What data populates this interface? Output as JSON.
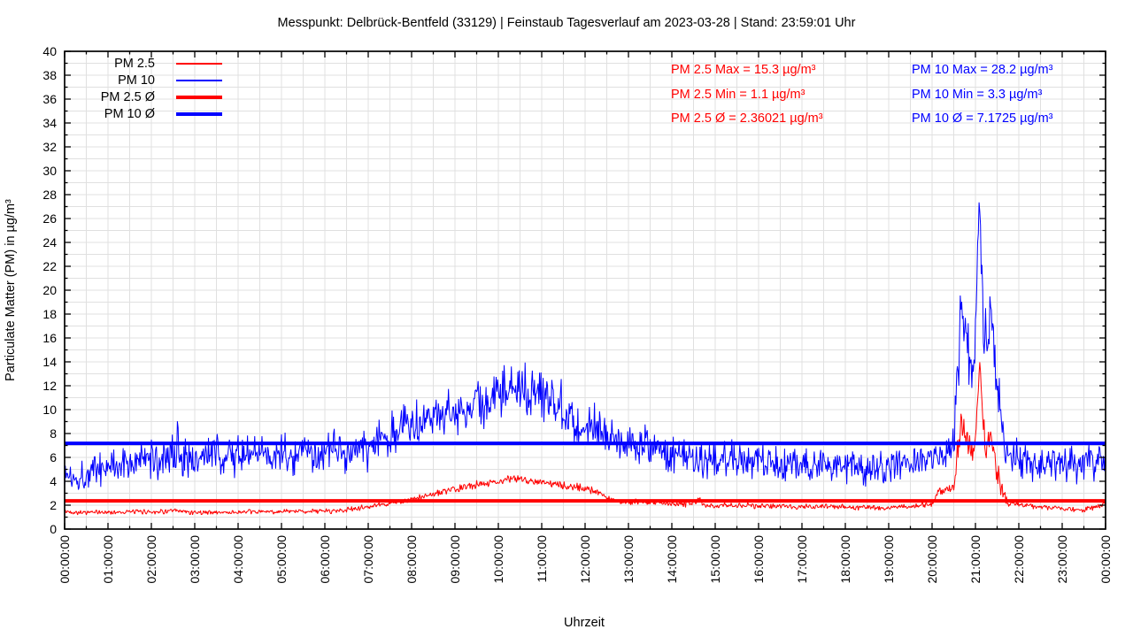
{
  "window": {
    "title": "Messpunkt: Delbrück-Bentfeld (33129) | Feinstaub Tagesverlauf am 2023-03-28 | Stand: 23:59:01 Uhr"
  },
  "legend": {
    "items": [
      {
        "label": "PM 2.5",
        "color": "#ff0000",
        "thick": false
      },
      {
        "label": "PM 10",
        "color": "#0000ff",
        "thick": false
      },
      {
        "label": "PM 2.5 Ø",
        "color": "#ff0000",
        "thick": true
      },
      {
        "label": "PM 10 Ø",
        "color": "#0000ff",
        "thick": true
      }
    ]
  },
  "stats": {
    "pm25": {
      "color": "#ff0000",
      "max_label": "PM 2.5 Max = 15.3 µg/m³",
      "min_label": "PM 2.5 Min = 1.1 µg/m³",
      "avg_label": "PM 2.5 Ø = 2.36021 µg/m³"
    },
    "pm10": {
      "color": "#0000ff",
      "max_label": "PM 10 Max = 28.2 µg/m³",
      "min_label": "PM 10 Min = 3.3 µg/m³",
      "avg_label": "PM 10 Ø = 7.1725 µg/m³"
    }
  },
  "chart_data": {
    "type": "line",
    "title": "Messpunkt: Delbrück-Bentfeld (33129) | Feinstaub Tagesverlauf am 2023-03-28 | Stand: 23:59:01 Uhr",
    "xlabel": "Uhrzeit",
    "ylabel": "Particulate Matter (PM) in µg/m³",
    "x_range_hours": [
      0,
      24
    ],
    "ylim": [
      0,
      40
    ],
    "y_major_step": 2,
    "y_minor_step": 1,
    "x_major_step_hours": 1,
    "x_minor_step_hours": 0.5,
    "grid": "major_and_minor",
    "grid_color": "#e0e0e0",
    "x_tick_labels": [
      "00:00:00",
      "01:00:00",
      "02:00:00",
      "03:00:00",
      "04:00:00",
      "05:00:00",
      "06:00:00",
      "07:00:00",
      "08:00:00",
      "09:00:00",
      "10:00:00",
      "11:00:00",
      "12:00:00",
      "13:00:00",
      "14:00:00",
      "15:00:00",
      "16:00:00",
      "17:00:00",
      "18:00:00",
      "19:00:00",
      "20:00:00",
      "21:00:00",
      "22:00:00",
      "23:00:00",
      "00:00:00"
    ],
    "y_tick_labels": [
      "0",
      "2",
      "4",
      "6",
      "8",
      "10",
      "12",
      "14",
      "16",
      "18",
      "20",
      "22",
      "24",
      "26",
      "28",
      "30",
      "32",
      "34",
      "36",
      "38",
      "40"
    ],
    "sample_interval_minutes": 1,
    "series": [
      {
        "name": "PM 2.5",
        "color": "#ff0000",
        "width": 1,
        "stats": {
          "max": 15.3,
          "min": 1.1,
          "avg": 2.36021
        },
        "noise_seed": 42,
        "clamp": [
          1.1,
          15.3
        ],
        "envelope_points_hour_mean_amp": [
          [
            0,
            1.45,
            0.18
          ],
          [
            0.5,
            1.4,
            0.15
          ],
          [
            1,
            1.4,
            0.15
          ],
          [
            1.5,
            1.45,
            0.15
          ],
          [
            2,
            1.45,
            0.15
          ],
          [
            2.5,
            1.5,
            0.18
          ],
          [
            3,
            1.4,
            0.15
          ],
          [
            3.5,
            1.4,
            0.15
          ],
          [
            4,
            1.4,
            0.15
          ],
          [
            4.5,
            1.45,
            0.15
          ],
          [
            5,
            1.45,
            0.15
          ],
          [
            5.5,
            1.5,
            0.15
          ],
          [
            6,
            1.5,
            0.18
          ],
          [
            6.5,
            1.6,
            0.18
          ],
          [
            7,
            1.85,
            0.18
          ],
          [
            7.5,
            2.15,
            0.15
          ],
          [
            8,
            2.45,
            0.18
          ],
          [
            8.5,
            2.95,
            0.2
          ],
          [
            9,
            3.3,
            0.22
          ],
          [
            9.5,
            3.75,
            0.25
          ],
          [
            10,
            4.0,
            0.25
          ],
          [
            10.4,
            4.25,
            0.25
          ],
          [
            10.8,
            4.05,
            0.22
          ],
          [
            11.2,
            3.8,
            0.22
          ],
          [
            11.6,
            3.55,
            0.25
          ],
          [
            12,
            3.45,
            0.28
          ],
          [
            12.3,
            3.1,
            0.25
          ],
          [
            12.6,
            2.4,
            0.18
          ],
          [
            13,
            2.25,
            0.18
          ],
          [
            13.5,
            2.3,
            0.2
          ],
          [
            14,
            2.05,
            0.18
          ],
          [
            14.5,
            2.2,
            0.25
          ],
          [
            14.6,
            2.6,
            0.3
          ],
          [
            14.7,
            2.1,
            0.2
          ],
          [
            15,
            1.95,
            0.18
          ],
          [
            15.5,
            2.0,
            0.18
          ],
          [
            16,
            1.95,
            0.18
          ],
          [
            16.5,
            1.9,
            0.18
          ],
          [
            17,
            1.9,
            0.18
          ],
          [
            17.5,
            1.85,
            0.18
          ],
          [
            18,
            1.85,
            0.18
          ],
          [
            18.5,
            1.8,
            0.18
          ],
          [
            19,
            1.8,
            0.18
          ],
          [
            19.5,
            1.9,
            0.18
          ],
          [
            20,
            2.1,
            0.2
          ],
          [
            20.15,
            3.1,
            0.3
          ],
          [
            20.35,
            3.3,
            0.3
          ],
          [
            20.5,
            3.4,
            0.5
          ],
          [
            20.6,
            7.0,
            1.5
          ],
          [
            20.68,
            9.0,
            0.7
          ],
          [
            20.8,
            7.8,
            0.9
          ],
          [
            20.92,
            6.2,
            0.8
          ],
          [
            21.02,
            8.5,
            1.2
          ],
          [
            21.1,
            14.3,
            1.0
          ],
          [
            21.18,
            8.0,
            1.2
          ],
          [
            21.28,
            7.0,
            0.9
          ],
          [
            21.37,
            7.8,
            0.7
          ],
          [
            21.5,
            5.0,
            0.9
          ],
          [
            21.6,
            3.2,
            0.5
          ],
          [
            21.75,
            2.2,
            0.25
          ],
          [
            22,
            2.0,
            0.18
          ],
          [
            22.3,
            1.95,
            0.18
          ],
          [
            22.7,
            1.8,
            0.18
          ],
          [
            23,
            1.7,
            0.18
          ],
          [
            23.3,
            1.6,
            0.18
          ],
          [
            23.6,
            1.65,
            0.18
          ],
          [
            23.85,
            1.9,
            0.2
          ],
          [
            24,
            2.2,
            0.2
          ]
        ]
      },
      {
        "name": "PM 10",
        "color": "#0000ff",
        "width": 1,
        "stats": {
          "max": 28.2,
          "min": 3.3,
          "avg": 7.1725
        },
        "noise_seed": 1337,
        "clamp": [
          3.3,
          28.2
        ],
        "envelope_points_hour_mean_amp": [
          [
            0,
            4.6,
            1.0
          ],
          [
            0.3,
            4.3,
            0.9
          ],
          [
            0.7,
            5.0,
            1.1
          ],
          [
            1,
            5.3,
            1.1
          ],
          [
            1.5,
            5.6,
            1.2
          ],
          [
            2,
            5.8,
            1.2
          ],
          [
            2.4,
            6.0,
            1.7
          ],
          [
            2.55,
            7.0,
            2.2
          ],
          [
            2.7,
            6.0,
            1.5
          ],
          [
            3,
            6.0,
            1.3
          ],
          [
            3.5,
            6.2,
            1.4
          ],
          [
            4,
            6.2,
            1.3
          ],
          [
            4.5,
            6.3,
            1.2
          ],
          [
            5,
            6.3,
            1.2
          ],
          [
            5.5,
            6.2,
            1.2
          ],
          [
            6,
            6.3,
            1.3
          ],
          [
            6.5,
            6.5,
            1.3
          ],
          [
            7,
            6.8,
            1.4
          ],
          [
            7.5,
            7.8,
            1.5
          ],
          [
            8,
            9.2,
            1.4
          ],
          [
            8.5,
            9.6,
            1.3
          ],
          [
            9,
            9.8,
            1.4
          ],
          [
            9.5,
            10.3,
            1.5
          ],
          [
            10,
            11.0,
            1.5
          ],
          [
            10.3,
            11.8,
            1.6
          ],
          [
            10.6,
            12.0,
            1.6
          ],
          [
            11,
            11.2,
            1.5
          ],
          [
            11.4,
            10.8,
            1.5
          ],
          [
            11.75,
            9.2,
            1.8
          ],
          [
            11.9,
            8.2,
            1.5
          ],
          [
            12.1,
            9.3,
            1.3
          ],
          [
            12.5,
            8.0,
            1.2
          ],
          [
            13,
            7.2,
            1.2
          ],
          [
            13.5,
            7.0,
            1.3
          ],
          [
            13.8,
            6.2,
            1.2
          ],
          [
            14.5,
            6.0,
            1.2
          ],
          [
            15,
            6.0,
            1.2
          ],
          [
            15.5,
            5.9,
            1.3
          ],
          [
            16,
            5.8,
            1.3
          ],
          [
            16.5,
            5.6,
            1.2
          ],
          [
            17,
            5.4,
            1.2
          ],
          [
            17.5,
            5.3,
            1.1
          ],
          [
            18,
            5.2,
            1.1
          ],
          [
            18.5,
            5.0,
            1.0
          ],
          [
            19,
            5.2,
            1.0
          ],
          [
            19.5,
            5.7,
            1.0
          ],
          [
            20,
            6.0,
            0.9
          ],
          [
            20.3,
            6.6,
            1.0
          ],
          [
            20.5,
            7.5,
            1.3
          ],
          [
            20.6,
            14.0,
            3.5
          ],
          [
            20.68,
            19.5,
            1.8
          ],
          [
            20.8,
            16.5,
            2.2
          ],
          [
            20.92,
            12.5,
            1.8
          ],
          [
            21.02,
            19.0,
            2.5
          ],
          [
            21.1,
            27.2,
            1.2
          ],
          [
            21.18,
            17.0,
            2.5
          ],
          [
            21.28,
            15.5,
            2.0
          ],
          [
            21.37,
            19.5,
            1.5
          ],
          [
            21.5,
            12.0,
            2.0
          ],
          [
            21.6,
            8.0,
            1.5
          ],
          [
            21.75,
            6.2,
            1.2
          ],
          [
            22,
            5.9,
            1.2
          ],
          [
            22.5,
            5.6,
            1.2
          ],
          [
            23,
            5.3,
            1.2
          ],
          [
            23.5,
            5.6,
            1.2
          ],
          [
            23.8,
            5.8,
            1.3
          ],
          [
            24,
            6.2,
            1.3
          ]
        ]
      },
      {
        "name": "PM 2.5 Ø",
        "color": "#ff0000",
        "width": 4,
        "constant_value": 2.36021
      },
      {
        "name": "PM 10 Ø",
        "color": "#0000ff",
        "width": 4,
        "constant_value": 7.1725
      }
    ]
  }
}
